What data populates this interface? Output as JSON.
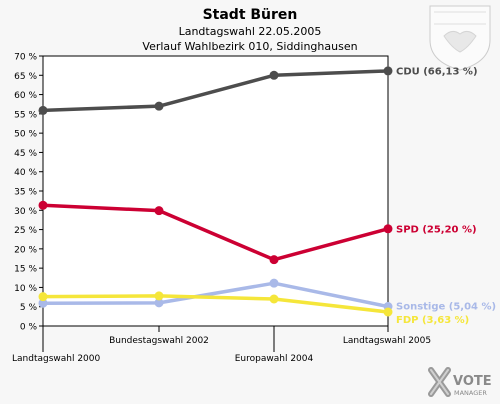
{
  "header": {
    "title": "Stadt Büren",
    "subtitle1": "Landtagswahl 22.05.2005",
    "subtitle2": "Verlauf Wahlbezirk 010, Siddinghausen"
  },
  "logo": {
    "icon": "coat-of-arms-icon",
    "brand_line1": "VOTE",
    "brand_line2": "MANAGER"
  },
  "chart_data": {
    "type": "line",
    "categories": [
      "Landtagswahl 2000",
      "Bundestagswahl 2002",
      "Europawahl 2004",
      "Landtagswahl 2005"
    ],
    "y_ticks": [
      "0 %",
      "5 %",
      "10 %",
      "15 %",
      "20 %",
      "25 %",
      "30 %",
      "35 %",
      "40 %",
      "45 %",
      "50 %",
      "55 %",
      "60 %",
      "65 %",
      "70 %"
    ],
    "ylim": [
      0,
      70
    ],
    "grid": false,
    "series": [
      {
        "name": "CDU",
        "label": "CDU (66,13 %)",
        "color": "#4d4d4d",
        "values": [
          55.9,
          57.0,
          65.0,
          66.13
        ]
      },
      {
        "name": "SPD",
        "label": "SPD (25,20 %)",
        "color": "#cc0033",
        "values": [
          31.3,
          29.9,
          17.2,
          25.2
        ]
      },
      {
        "name": "Sonstige",
        "label": "Sonstige (5,04 %)",
        "color": "#a9b9e8",
        "values": [
          5.9,
          6.0,
          11.1,
          5.04
        ]
      },
      {
        "name": "FDP",
        "label": "FDP (3,63 %)",
        "color": "#f5e63a",
        "values": [
          7.6,
          7.8,
          7.0,
          3.63
        ]
      }
    ]
  }
}
